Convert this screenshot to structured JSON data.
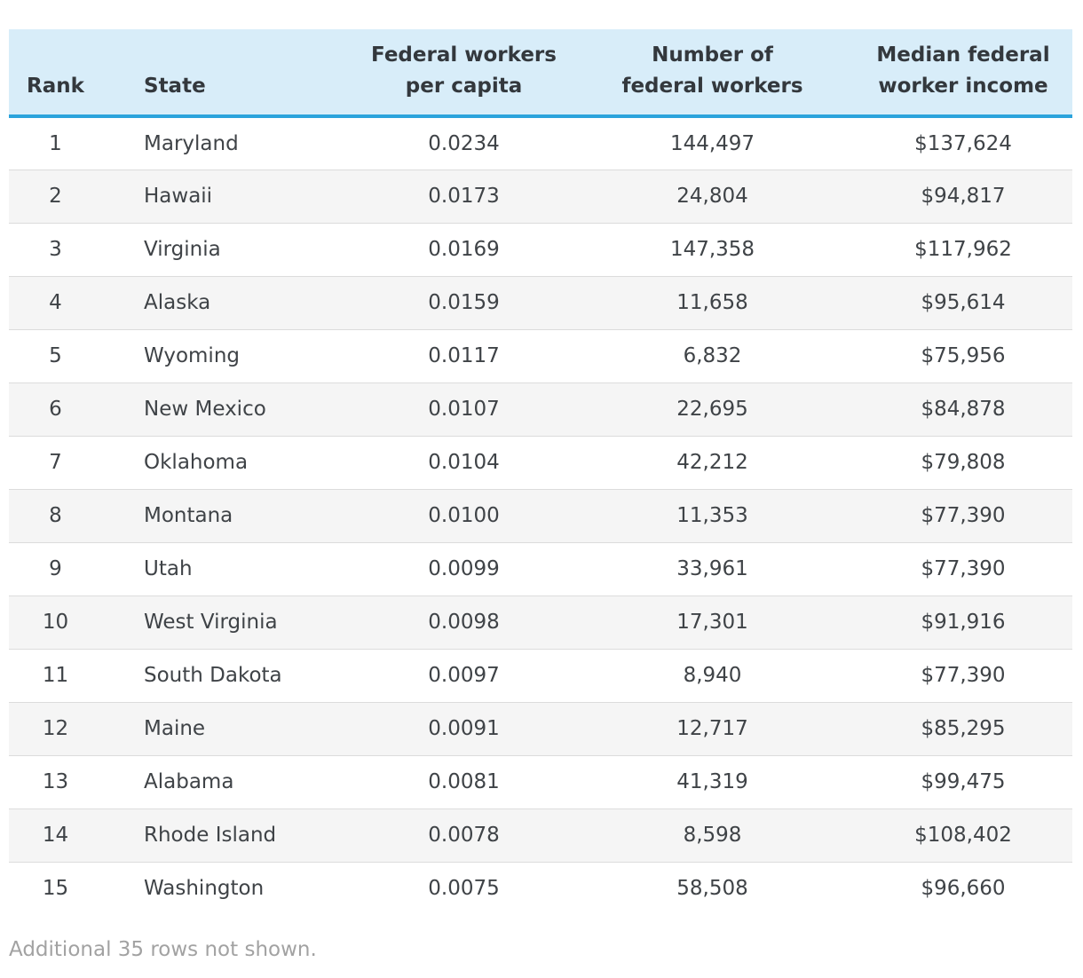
{
  "header": {
    "columns": [
      {
        "line1": "Rank",
        "line2": ""
      },
      {
        "line1": "State",
        "line2": ""
      },
      {
        "line1": "Federal workers",
        "line2": "per capita"
      },
      {
        "line1": "Number of",
        "line2": "federal workers"
      },
      {
        "line1": "Median federal",
        "line2": "worker income"
      }
    ]
  },
  "footer": {
    "note": "Additional 35 rows not shown."
  },
  "colors": {
    "header_bg": "#d8edf9",
    "header_border": "#2ba3dc",
    "alt_row_bg": "#f5f5f5",
    "row_divider": "#dcdcdc",
    "body_text": "#3f4347",
    "header_text": "#33383d",
    "footer_text": "#a2a2a2",
    "page_bg": "#ffffff"
  },
  "chart_data": {
    "type": "table",
    "columns": [
      "Rank",
      "State",
      "Federal workers per capita",
      "Number of federal workers",
      "Median federal worker income"
    ],
    "rows": [
      [
        "1",
        "Maryland",
        "0.0234",
        "144,497",
        "$137,624"
      ],
      [
        "2",
        "Hawaii",
        "0.0173",
        "24,804",
        "$94,817"
      ],
      [
        "3",
        "Virginia",
        "0.0169",
        "147,358",
        "$117,962"
      ],
      [
        "4",
        "Alaska",
        "0.0159",
        "11,658",
        "$95,614"
      ],
      [
        "5",
        "Wyoming",
        "0.0117",
        "6,832",
        "$75,956"
      ],
      [
        "6",
        "New Mexico",
        "0.0107",
        "22,695",
        "$84,878"
      ],
      [
        "7",
        "Oklahoma",
        "0.0104",
        "42,212",
        "$79,808"
      ],
      [
        "8",
        "Montana",
        "0.0100",
        "11,353",
        "$77,390"
      ],
      [
        "9",
        "Utah",
        "0.0099",
        "33,961",
        "$77,390"
      ],
      [
        "10",
        "West Virginia",
        "0.0098",
        "17,301",
        "$91,916"
      ],
      [
        "11",
        "South Dakota",
        "0.0097",
        "8,940",
        "$77,390"
      ],
      [
        "12",
        "Maine",
        "0.0091",
        "12,717",
        "$85,295"
      ],
      [
        "13",
        "Alabama",
        "0.0081",
        "41,319",
        "$99,475"
      ],
      [
        "14",
        "Rhode Island",
        "0.0078",
        "8,598",
        "$108,402"
      ],
      [
        "15",
        "Washington",
        "0.0075",
        "58,508",
        "$96,660"
      ]
    ],
    "footer_note": "Additional 35 rows not shown."
  }
}
